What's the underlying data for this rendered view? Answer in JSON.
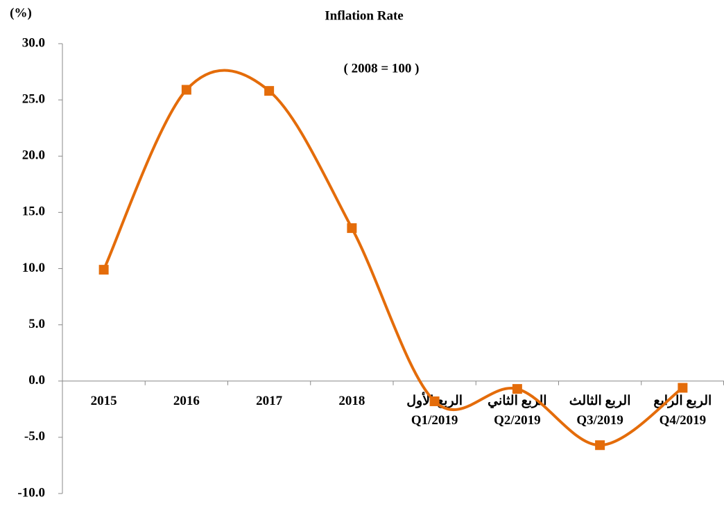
{
  "chart_data": {
    "type": "line",
    "title": "Inflation Rate",
    "subtitle": "( 2008 = 100 )",
    "ylabel": "(%)",
    "categories": [
      [
        "2015"
      ],
      [
        "2016"
      ],
      [
        "2017"
      ],
      [
        "2018"
      ],
      [
        "الربع الأول",
        "Q1/2019"
      ],
      [
        "الربع الثاني",
        "Q2/2019"
      ],
      [
        "الربع الثالث",
        "Q3/2019"
      ],
      [
        "الربع الرابع",
        "Q4/2019"
      ]
    ],
    "series": [
      {
        "name": "Inflation Rate",
        "color": "#e46c0a",
        "values": [
          9.9,
          25.9,
          25.8,
          13.6,
          -1.8,
          -0.7,
          -5.7,
          -0.6
        ]
      }
    ],
    "smooth": true,
    "ylim": [
      -10,
      30
    ],
    "yticks": [
      {
        "value": -10,
        "label": "-10.0"
      },
      {
        "value": -5,
        "label": "-5.0"
      },
      {
        "value": 0,
        "label": "0.0"
      },
      {
        "value": 5,
        "label": "5.0"
      },
      {
        "value": 10,
        "label": "10.0"
      },
      {
        "value": 15,
        "label": "15.0"
      },
      {
        "value": 20,
        "label": "20.0"
      },
      {
        "value": 25,
        "label": "25.0"
      },
      {
        "value": 30,
        "label": "30.0"
      }
    ]
  }
}
